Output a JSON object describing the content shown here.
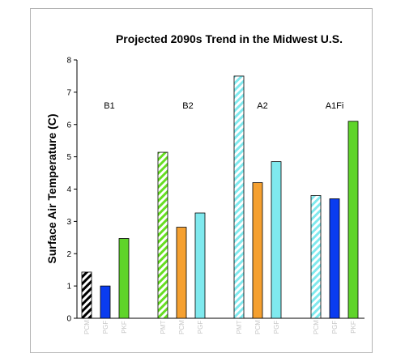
{
  "chart_data": {
    "type": "bar",
    "title": "Projected 2090s Trend in the Midwest U.S.",
    "xlabel": "",
    "ylabel": "Surface Air Temperature (C)",
    "ylim": [
      0,
      8
    ],
    "yticks": [
      0,
      1,
      2,
      3,
      4,
      5,
      6,
      7,
      8
    ],
    "grid": false,
    "legend": "none",
    "groups": [
      {
        "label": "B1",
        "bars": [
          {
            "category": "PCM",
            "value": 1.43,
            "color": "#000000",
            "pattern": "hatched"
          },
          {
            "category": "PGF",
            "value": 1.0,
            "color": "#0a3cf0",
            "pattern": "solid"
          },
          {
            "category": "PKF",
            "value": 2.47,
            "color": "#5fd42a",
            "pattern": "solid"
          }
        ]
      },
      {
        "label": "B2",
        "bars": [
          {
            "category": "PMT",
            "value": 5.14,
            "color": "#66dd22",
            "pattern": "hatched"
          },
          {
            "category": "PCM",
            "value": 2.82,
            "color": "#f5a030",
            "pattern": "solid"
          },
          {
            "category": "PGF",
            "value": 3.26,
            "color": "#7fe9ee",
            "pattern": "solid"
          }
        ]
      },
      {
        "label": "A2",
        "bars": [
          {
            "category": "PMT",
            "value": 7.5,
            "color": "#7fe9ee",
            "pattern": "hatched"
          },
          {
            "category": "PCM",
            "value": 4.2,
            "color": "#f5a030",
            "pattern": "solid"
          },
          {
            "category": "PGF",
            "value": 4.85,
            "color": "#7fe9ee",
            "pattern": "solid"
          }
        ]
      },
      {
        "label": "A1Fi",
        "bars": [
          {
            "category": "PCM",
            "value": 3.8,
            "color": "#7fe9ee",
            "pattern": "hatched"
          },
          {
            "category": "PGF",
            "value": 3.7,
            "color": "#0a3cf0",
            "pattern": "solid"
          },
          {
            "category": "PKF",
            "value": 6.1,
            "color": "#5fd42a",
            "pattern": "solid"
          }
        ]
      }
    ]
  }
}
